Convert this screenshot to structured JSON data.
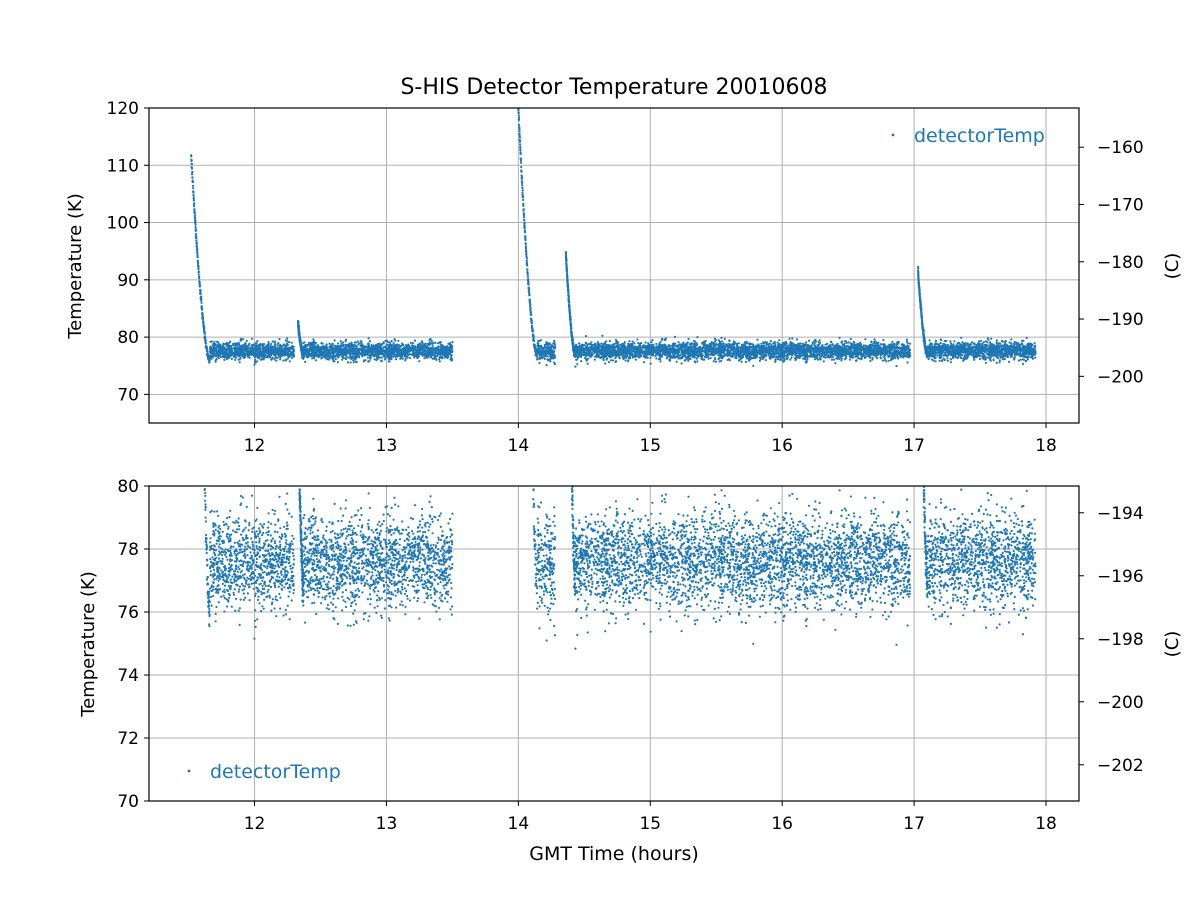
{
  "colors": {
    "series": "#1f77b4",
    "grid": "#b0b0b0",
    "axis": "#000000"
  },
  "chart_data": [
    {
      "type": "scatter",
      "title": "S-HIS Detector Temperature 20010608",
      "xlabel": "",
      "ylabel": "Temperature (K)",
      "ylabel_right": "(C)",
      "xlim": [
        11.2,
        18.25
      ],
      "ylim": [
        65,
        120
      ],
      "ylim_right": [
        -208.15,
        -153.15
      ],
      "xticks": [
        "12",
        "13",
        "14",
        "15",
        "16",
        "17",
        "18"
      ],
      "yticks": [
        "70",
        "80",
        "90",
        "100",
        "110",
        "120"
      ],
      "yticks_right": [
        "−160",
        "−170",
        "−180",
        "−190",
        "−200"
      ],
      "grid": true,
      "legend": {
        "entries": [
          "detectorTemp"
        ],
        "placement": "top-right"
      },
      "series": [
        {
          "name": "detectorTemp",
          "segments": [
            {
              "x_start": 11.52,
              "x_end": 11.66,
              "kind": "cooldown",
              "y_start": 111.5,
              "y_end": 76.0
            },
            {
              "x_start": 11.66,
              "x_end": 12.3,
              "kind": "noise",
              "mean": 77.6,
              "spread": 1.2
            },
            {
              "x_start": 12.33,
              "x_end": 12.37,
              "kind": "cooldown",
              "y_start": 82.3,
              "y_end": 77.0
            },
            {
              "x_start": 12.37,
              "x_end": 13.5,
              "kind": "noise",
              "mean": 77.6,
              "spread": 1.2
            },
            {
              "x_start": 14.0,
              "x_end": 14.14,
              "kind": "cooldown",
              "y_start": 120.0,
              "y_end": 77.0
            },
            {
              "x_start": 14.14,
              "x_end": 14.28,
              "kind": "noise",
              "mean": 77.5,
              "spread": 1.3
            },
            {
              "x_start": 14.36,
              "x_end": 14.43,
              "kind": "cooldown",
              "y_start": 94.5,
              "y_end": 77.0
            },
            {
              "x_start": 14.43,
              "x_end": 16.97,
              "kind": "noise",
              "mean": 77.6,
              "spread": 1.2
            },
            {
              "x_start": 17.03,
              "x_end": 17.1,
              "kind": "cooldown",
              "y_start": 91.5,
              "y_end": 77.0
            },
            {
              "x_start": 17.1,
              "x_end": 17.92,
              "kind": "noise",
              "mean": 77.6,
              "spread": 1.2
            }
          ]
        }
      ]
    },
    {
      "type": "scatter",
      "title": "",
      "xlabel": "GMT Time (hours)",
      "ylabel": "Temperature (K)",
      "ylabel_right": "(C)",
      "xlim": [
        11.2,
        18.25
      ],
      "ylim": [
        70,
        80
      ],
      "ylim_right": [
        -203.15,
        -193.15
      ],
      "xticks": [
        "12",
        "13",
        "14",
        "15",
        "16",
        "17",
        "18"
      ],
      "yticks": [
        "70",
        "72",
        "74",
        "76",
        "78",
        "80"
      ],
      "yticks_right": [
        "−194",
        "−196",
        "−198",
        "−200",
        "−202"
      ],
      "grid": true,
      "legend": {
        "entries": [
          "detectorTemp"
        ],
        "placement": "bottom-left"
      },
      "series": [
        {
          "name": "detectorTemp",
          "segments": [
            {
              "x_start": 11.52,
              "x_end": 11.66,
              "kind": "cooldown",
              "y_start": 111.5,
              "y_end": 76.0
            },
            {
              "x_start": 11.66,
              "x_end": 12.3,
              "kind": "noise",
              "mean": 77.6,
              "spread": 1.2
            },
            {
              "x_start": 12.33,
              "x_end": 12.37,
              "kind": "cooldown",
              "y_start": 82.3,
              "y_end": 77.0
            },
            {
              "x_start": 12.37,
              "x_end": 13.5,
              "kind": "noise",
              "mean": 77.6,
              "spread": 1.2
            },
            {
              "x_start": 14.0,
              "x_end": 14.14,
              "kind": "cooldown",
              "y_start": 120.0,
              "y_end": 77.0
            },
            {
              "x_start": 14.14,
              "x_end": 14.28,
              "kind": "noise",
              "mean": 77.5,
              "spread": 1.3
            },
            {
              "x_start": 14.36,
              "x_end": 14.43,
              "kind": "cooldown",
              "y_start": 94.5,
              "y_end": 77.0
            },
            {
              "x_start": 14.43,
              "x_end": 16.97,
              "kind": "noise",
              "mean": 77.6,
              "spread": 1.2
            },
            {
              "x_start": 17.03,
              "x_end": 17.1,
              "kind": "cooldown",
              "y_start": 91.5,
              "y_end": 77.0
            },
            {
              "x_start": 17.1,
              "x_end": 17.92,
              "kind": "noise",
              "mean": 77.6,
              "spread": 1.2
            }
          ]
        }
      ]
    }
  ]
}
